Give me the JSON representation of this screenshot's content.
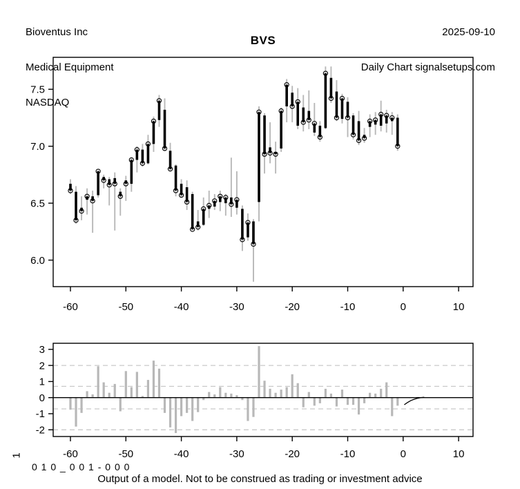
{
  "header": {
    "company": "Bioventus Inc",
    "industry": "Medical Equipment",
    "exchange": "NASDAQ",
    "date": "2025-09-10",
    "chart_label": "Daily Chart signalsetups.com"
  },
  "footer": {
    "panel_label": "1",
    "model_id": "0 1 0 _ 0 0 1 - 0 0 0",
    "disclaimer": "Output of a model. Not to be construed as trading or investment advice"
  },
  "colors": {
    "background": "#ffffff",
    "bar_gray": "#b8b8b8",
    "body_black": "#000000",
    "dashed_gray": "#c9c9c9",
    "axis_black": "#000000"
  },
  "chart_data": [
    {
      "type": "ohlc",
      "title": "BVS",
      "xlabel": "",
      "ylabel": "",
      "xlim": [
        -63.1,
        12.6
      ],
      "ylim": [
        5.77,
        7.78
      ],
      "xticks": [
        -60,
        -50,
        -40,
        -30,
        -20,
        -10,
        0,
        10
      ],
      "yticks": [
        6.0,
        6.5,
        7.0,
        7.5
      ],
      "grid": false,
      "legend": "none",
      "marker": "open-circle-at-close",
      "series": [
        {
          "name": "BVS daily OHLC (trading-day offset)",
          "columns": [
            "day",
            "open",
            "high",
            "low",
            "close"
          ],
          "rows": [
            [
              -60,
              6.67,
              6.71,
              6.58,
              6.61
            ],
            [
              -59,
              6.6,
              6.65,
              6.32,
              6.35
            ],
            [
              -58,
              6.46,
              6.56,
              6.35,
              6.43
            ],
            [
              -57,
              6.53,
              6.63,
              6.4,
              6.56
            ],
            [
              -56,
              6.56,
              6.61,
              6.24,
              6.52
            ],
            [
              -55,
              6.57,
              6.8,
              6.55,
              6.78
            ],
            [
              -54,
              6.73,
              6.75,
              6.63,
              6.7
            ],
            [
              -53,
              6.71,
              6.73,
              6.48,
              6.66
            ],
            [
              -52,
              6.72,
              6.77,
              6.26,
              6.67
            ],
            [
              -51,
              6.6,
              6.63,
              6.39,
              6.56
            ],
            [
              -50,
              6.7,
              6.74,
              6.52,
              6.67
            ],
            [
              -49,
              6.67,
              6.9,
              6.6,
              6.88
            ],
            [
              -48,
              6.88,
              7.0,
              6.77,
              6.97
            ],
            [
              -47,
              6.97,
              7.02,
              6.82,
              6.85
            ],
            [
              -46,
              6.85,
              7.1,
              6.84,
              7.02
            ],
            [
              -45,
              7.02,
              7.26,
              6.95,
              7.22
            ],
            [
              -44,
              7.23,
              7.45,
              7.17,
              7.4
            ],
            [
              -43,
              7.32,
              7.42,
              6.96,
              6.98
            ],
            [
              -42,
              6.96,
              7.03,
              6.78,
              6.8
            ],
            [
              -41,
              6.83,
              6.84,
              6.56,
              6.61
            ],
            [
              -40,
              6.67,
              6.71,
              6.55,
              6.57
            ],
            [
              -39,
              6.64,
              6.7,
              6.44,
              6.51
            ],
            [
              -38,
              6.58,
              6.6,
              6.26,
              6.27
            ],
            [
              -37,
              6.34,
              6.44,
              6.26,
              6.29
            ],
            [
              -36,
              6.31,
              6.55,
              6.3,
              6.45
            ],
            [
              -35,
              6.45,
              6.61,
              6.37,
              6.48
            ],
            [
              -34,
              6.47,
              6.58,
              6.44,
              6.52
            ],
            [
              -33,
              6.51,
              6.61,
              6.43,
              6.56
            ],
            [
              -32,
              6.5,
              6.58,
              6.39,
              6.55
            ],
            [
              -31,
              6.55,
              6.9,
              6.38,
              6.49
            ],
            [
              -30,
              6.46,
              6.78,
              6.4,
              6.53
            ],
            [
              -29,
              6.45,
              6.48,
              6.08,
              6.18
            ],
            [
              -28,
              6.2,
              6.41,
              6.17,
              6.33
            ],
            [
              -27,
              6.34,
              6.36,
              5.81,
              6.14
            ],
            [
              -26,
              6.51,
              7.35,
              6.34,
              7.3
            ],
            [
              -25,
              7.27,
              7.29,
              6.76,
              6.93
            ],
            [
              -24,
              6.99,
              7.21,
              6.85,
              6.94
            ],
            [
              -23,
              6.95,
              7.04,
              6.76,
              6.93
            ],
            [
              -22,
              6.98,
              7.34,
              6.95,
              7.31
            ],
            [
              -21,
              7.35,
              7.59,
              7.21,
              7.54
            ],
            [
              -20,
              7.47,
              7.53,
              7.21,
              7.35
            ],
            [
              -19,
              7.18,
              7.51,
              7.15,
              7.39
            ],
            [
              -18,
              7.34,
              7.45,
              7.13,
              7.21
            ],
            [
              -17,
              7.31,
              7.49,
              7.15,
              7.23
            ],
            [
              -16,
              7.12,
              7.38,
              7.09,
              7.2
            ],
            [
              -15,
              7.18,
              7.22,
              7.04,
              7.08
            ],
            [
              -14,
              7.16,
              7.7,
              7.15,
              7.64
            ],
            [
              -13,
              7.6,
              7.7,
              7.38,
              7.42
            ],
            [
              -12,
              7.48,
              7.58,
              7.22,
              7.25
            ],
            [
              -11,
              7.24,
              7.46,
              7.2,
              7.42
            ],
            [
              -10,
              7.39,
              7.43,
              7.08,
              7.25
            ],
            [
              -9,
              7.27,
              7.29,
              7.06,
              7.1
            ],
            [
              -8,
              7.22,
              7.31,
              7.01,
              7.05
            ],
            [
              -7,
              7.1,
              7.16,
              7.03,
              7.07
            ],
            [
              -6,
              7.17,
              7.28,
              7.08,
              7.22
            ],
            [
              -5,
              7.19,
              7.3,
              7.1,
              7.23
            ],
            [
              -4,
              7.18,
              7.4,
              7.13,
              7.28
            ],
            [
              -3,
              7.2,
              7.32,
              7.12,
              7.27
            ],
            [
              -2,
              7.22,
              7.3,
              7.1,
              7.25
            ],
            [
              -1,
              7.25,
              7.28,
              6.96,
              7.0
            ]
          ]
        }
      ]
    },
    {
      "type": "bar",
      "title": "",
      "xlabel": "",
      "ylabel": "1",
      "xlim": [
        -63.1,
        12.6
      ],
      "ylim": [
        -2.42,
        3.38
      ],
      "xticks": [
        -60,
        -50,
        -40,
        -30,
        -20,
        -10,
        0,
        10
      ],
      "yticks": [
        -2,
        -1,
        0,
        1,
        2,
        3
      ],
      "grid": "dashed-thresholds",
      "thresholds": [
        2,
        0.7,
        -0.7,
        -2
      ],
      "zero_line": true,
      "x": [
        -60,
        -59,
        -58,
        -57,
        -56,
        -55,
        -54,
        -53,
        -52,
        -51,
        -50,
        -49,
        -48,
        -47,
        -46,
        -45,
        -44,
        -43,
        -42,
        -41,
        -40,
        -39,
        -38,
        -37,
        -36,
        -35,
        -34,
        -33,
        -32,
        -31,
        -30,
        -29,
        -28,
        -27,
        -26,
        -25,
        -24,
        -23,
        -22,
        -21,
        -20,
        -19,
        -18,
        -17,
        -16,
        -15,
        -14,
        -13,
        -12,
        -11,
        -10,
        -9,
        -8,
        -7,
        -6,
        -5,
        -4,
        -3,
        -2,
        -1
      ],
      "values": [
        -0.75,
        -1.8,
        -0.95,
        0.4,
        0.2,
        1.95,
        0.95,
        0.3,
        0.85,
        -0.85,
        1.65,
        0.65,
        1.6,
        0.1,
        1.1,
        2.3,
        1.8,
        -0.95,
        -1.85,
        -2.2,
        -1.15,
        -0.95,
        -1.45,
        -0.9,
        -0.15,
        0.35,
        0.2,
        0.65,
        0.3,
        0.25,
        0.15,
        -0.15,
        -1.45,
        -1.2,
        3.2,
        1.05,
        0.55,
        0.3,
        0.5,
        0.65,
        1.45,
        0.9,
        -0.6,
        0.35,
        -0.5,
        -0.35,
        0.55,
        0.25,
        -0.55,
        0.5,
        -0.45,
        -0.45,
        -1.05,
        -0.35,
        0.3,
        0.25,
        0.55,
        0.95,
        -1.15,
        -0.5
      ],
      "forecast_curve": [
        [
          0.2,
          -0.44
        ],
        [
          0.8,
          -0.3
        ],
        [
          1.4,
          -0.18
        ],
        [
          2.0,
          -0.1
        ],
        [
          2.6,
          -0.04
        ],
        [
          3.2,
          0.0
        ],
        [
          3.8,
          0.02
        ]
      ]
    }
  ]
}
